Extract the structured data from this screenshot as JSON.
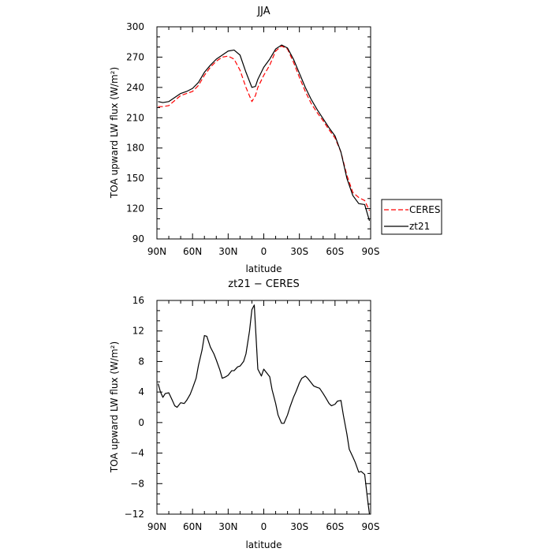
{
  "chart_data": [
    {
      "type": "line",
      "title": "JJA",
      "xlabel": "latitude",
      "ylabel": "TOA upward LW flux (W/m²)",
      "xlim": [
        90,
        -90
      ],
      "ylim": [
        90,
        300
      ],
      "xticks": [
        90,
        60,
        30,
        0,
        -30,
        -60,
        -90
      ],
      "xtick_labels": [
        "90N",
        "60N",
        "30N",
        "0",
        "30S",
        "60S",
        "90S"
      ],
      "yticks": [
        90,
        120,
        150,
        180,
        210,
        240,
        270,
        300
      ],
      "ytick_labels": [
        "90",
        "120",
        "150",
        "180",
        "210",
        "240",
        "270",
        "300"
      ],
      "grid": false,
      "legend_position": "right",
      "series": [
        {
          "name": "CERES",
          "color": "#ff0000",
          "dash": "dashed",
          "x": [
            89,
            85,
            80,
            75,
            70,
            65,
            60,
            55,
            50,
            45,
            40,
            35,
            30,
            25,
            20,
            15,
            10,
            7,
            5,
            0,
            -5,
            -10,
            -15,
            -20,
            -25,
            -30,
            -35,
            -40,
            -45,
            -50,
            -55,
            -60,
            -65,
            -70,
            -75,
            -80,
            -85,
            -89
          ],
          "y": [
            221,
            221,
            222,
            227,
            232,
            234,
            236,
            242,
            252,
            260,
            266,
            270,
            271,
            268,
            257,
            240,
            226,
            232,
            240,
            252,
            262,
            276,
            281,
            278,
            265,
            250,
            236,
            224,
            215,
            207,
            198,
            190,
            176,
            153,
            136,
            131,
            128,
            118
          ]
        },
        {
          "name": "zt21",
          "color": "#000000",
          "dash": "solid",
          "x": [
            89,
            85,
            80,
            75,
            70,
            65,
            60,
            55,
            50,
            45,
            40,
            35,
            30,
            25,
            20,
            15,
            10,
            7,
            5,
            0,
            -5,
            -10,
            -15,
            -20,
            -25,
            -30,
            -35,
            -40,
            -45,
            -50,
            -55,
            -60,
            -65,
            -70,
            -75,
            -80,
            -85,
            -89
          ],
          "y": [
            226,
            225,
            226,
            230,
            234,
            236,
            239,
            245,
            255,
            262,
            268,
            272,
            276,
            277,
            272,
            255,
            240,
            241,
            248,
            260,
            268,
            278,
            282,
            279,
            268,
            254,
            240,
            228,
            218,
            209,
            200,
            192,
            176,
            150,
            133,
            125,
            124,
            108
          ]
        }
      ]
    },
    {
      "type": "line",
      "title": "zt21 − CERES",
      "xlabel": "latitude",
      "ylabel": "TOA upward LW flux (W/m²)",
      "xlim": [
        90,
        -90
      ],
      "ylim": [
        -12,
        16
      ],
      "xticks": [
        90,
        60,
        30,
        0,
        -30,
        -60,
        -90
      ],
      "xtick_labels": [
        "90N",
        "60N",
        "30N",
        "0",
        "30S",
        "60S",
        "90S"
      ],
      "yticks": [
        -12,
        -8,
        -4,
        0,
        4,
        8,
        12,
        16
      ],
      "ytick_labels": [
        "−12",
        "−8",
        "−4",
        "0",
        "4",
        "8",
        "12",
        "16"
      ],
      "grid": false,
      "series": [
        {
          "color": "#000000",
          "dash": "solid",
          "x": [
            89,
            87,
            85,
            83,
            80,
            77,
            75,
            73,
            70,
            67,
            65,
            62,
            60,
            57,
            55,
            52,
            50,
            48,
            45,
            42,
            40,
            37,
            35,
            32,
            30,
            27,
            25,
            22,
            20,
            17,
            15,
            12,
            10,
            8,
            5,
            2,
            0,
            -2,
            -5,
            -7,
            -10,
            -12,
            -15,
            -17,
            -20,
            -22,
            -25,
            -27,
            -30,
            -32,
            -35,
            -37,
            -40,
            -42,
            -45,
            -47,
            -50,
            -52,
            -55,
            -57,
            -60,
            -62,
            -65,
            -67,
            -70,
            -72,
            -75,
            -77,
            -80,
            -82,
            -85,
            -87,
            -89
          ],
          "y": [
            5.1,
            4.0,
            3.3,
            3.8,
            3.9,
            2.9,
            2.2,
            2.0,
            2.6,
            2.5,
            2.9,
            3.7,
            4.5,
            5.8,
            7.5,
            9.5,
            11.4,
            11.3,
            9.9,
            9.0,
            8.2,
            6.9,
            5.8,
            6.0,
            6.2,
            6.8,
            6.8,
            7.3,
            7.4,
            8.0,
            9.0,
            12.0,
            14.8,
            15.4,
            7.0,
            6.1,
            7.0,
            6.6,
            6.0,
            4.3,
            2.5,
            1.0,
            -0.1,
            -0.1,
            1.0,
            2.0,
            3.3,
            4.0,
            5.2,
            5.8,
            6.1,
            5.8,
            5.2,
            4.8,
            4.6,
            4.5,
            3.8,
            3.3,
            2.5,
            2.2,
            2.4,
            2.8,
            2.9,
            1.0,
            -1.5,
            -3.5,
            -4.5,
            -5.2,
            -6.5,
            -6.4,
            -6.8,
            -9.5,
            -12.0
          ]
        }
      ]
    }
  ]
}
